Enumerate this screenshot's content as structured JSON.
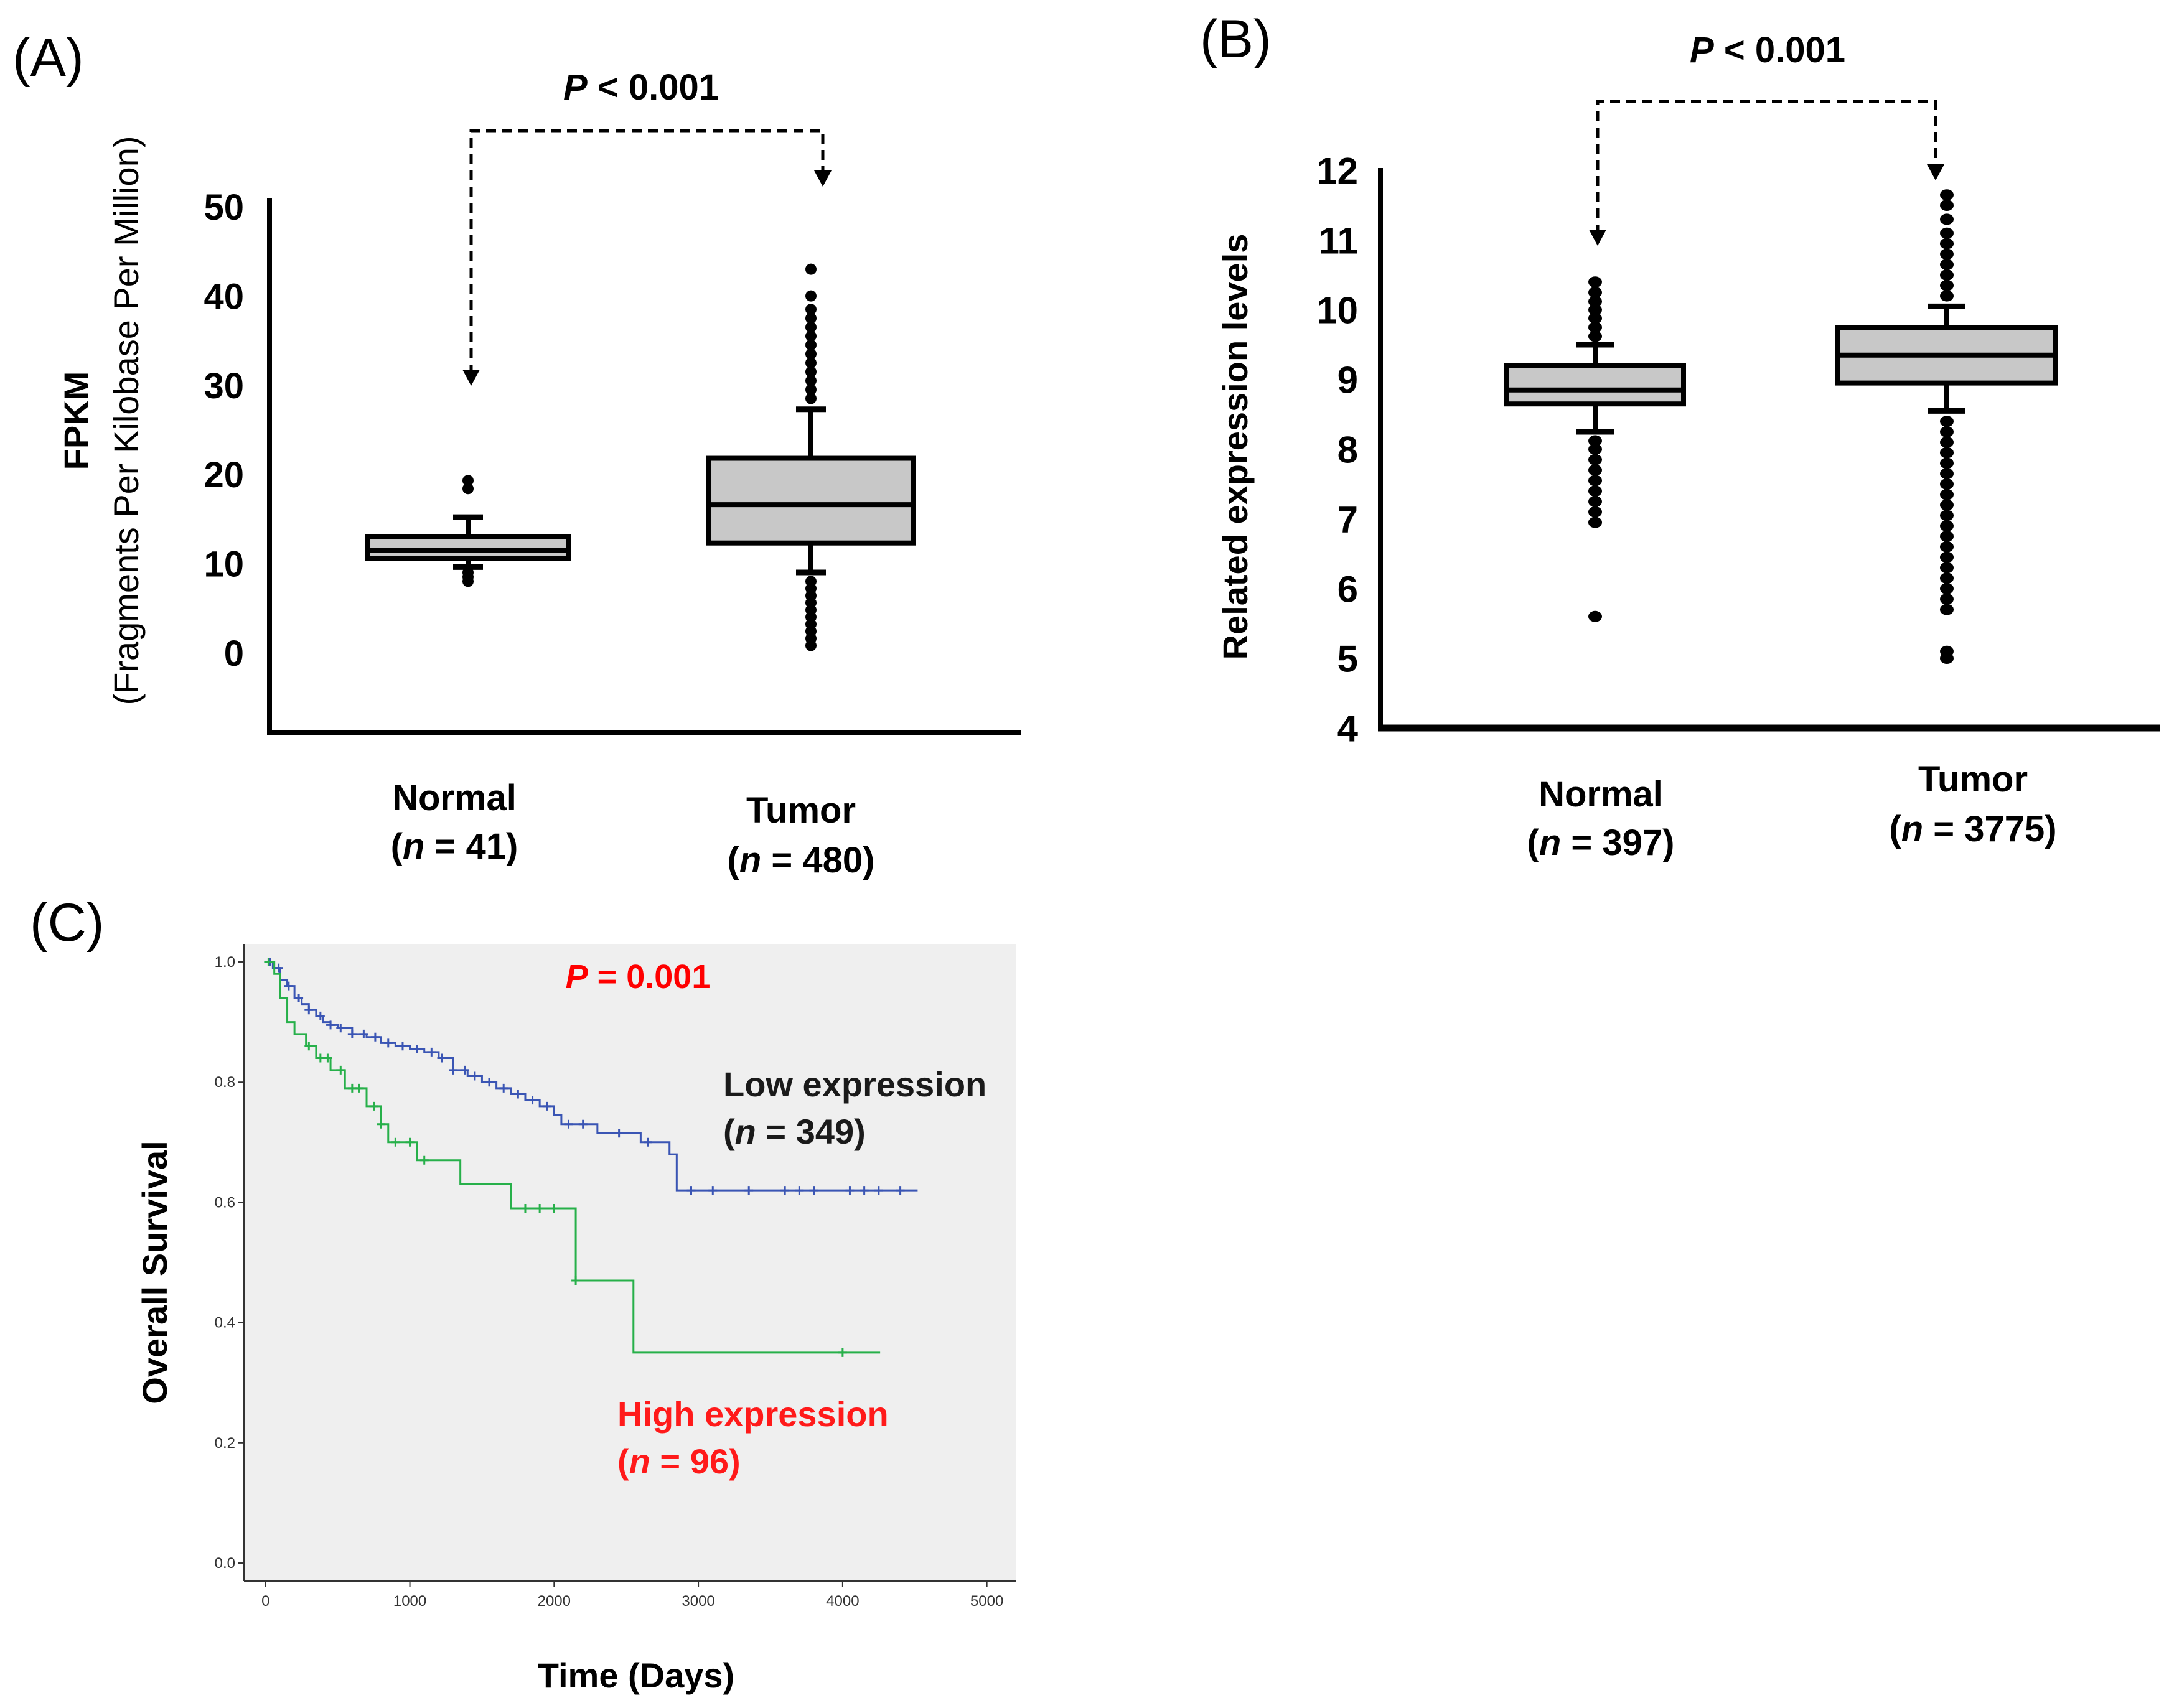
{
  "chart_data": [
    {
      "id": "A",
      "panel_label": "(A)",
      "type": "box",
      "ylabel_main": "FPKM",
      "ylabel_sub": "(Fragments Per Kilobase Per Million)",
      "ylim": [
        -9,
        51
      ],
      "yticks": [
        0,
        10,
        20,
        30,
        40,
        50
      ],
      "pvalue": {
        "italic": "P",
        "rest": " < 0.001"
      },
      "groups": [
        {
          "name": "Normal",
          "n_prefix": "(",
          "n_italic": "n",
          "n_text": " = 41)",
          "whisker_low": 9.6,
          "q1": 10.6,
          "median": 11.5,
          "q3": 13,
          "whisker_high": 15.2,
          "outliers": [
            8,
            8.5,
            9,
            18.4,
            19.3
          ]
        },
        {
          "name": "Tumor",
          "n_prefix": "(",
          "n_italic": "n",
          "n_text": " = 480)",
          "whisker_low": 9,
          "q1": 12.3,
          "median": 16.6,
          "q3": 21.8,
          "whisker_high": 27.3,
          "outliers": [
            0.8,
            1.6,
            2.4,
            3.2,
            4,
            4.8,
            5.6,
            6.4,
            7.2,
            8,
            28.5,
            29.5,
            30.5,
            31.5,
            32.5,
            33.5,
            34.5,
            35.5,
            36.5,
            37.5,
            38.5,
            40,
            43
          ]
        }
      ]
    },
    {
      "id": "B",
      "panel_label": "(B)",
      "type": "box",
      "ylabel_main": "Related expression levels",
      "ylim": [
        4,
        12
      ],
      "yticks": [
        4,
        5,
        6,
        7,
        8,
        9,
        10,
        11,
        12
      ],
      "pvalue": {
        "italic": "P",
        "rest": " < 0.001"
      },
      "groups": [
        {
          "name": "Normal",
          "n_prefix": "(",
          "n_italic": "n",
          "n_text": " = 397)",
          "whisker_low": 8.25,
          "q1": 8.65,
          "median": 8.85,
          "q3": 9.2,
          "whisker_high": 9.5,
          "outliers": [
            5.6,
            6.95,
            7.1,
            7.25,
            7.4,
            7.55,
            7.7,
            7.85,
            8.0,
            8.12,
            9.62,
            9.75,
            9.88,
            10.0,
            10.12,
            10.25,
            10.4
          ]
        },
        {
          "name": "Tumor",
          "n_prefix": "(",
          "n_italic": "n",
          "n_text": " = 3775)",
          "whisker_low": 8.55,
          "q1": 8.95,
          "median": 9.35,
          "q3": 9.75,
          "whisker_high": 10.05,
          "outliers": [
            5.0,
            5.1,
            5.7,
            5.85,
            6.0,
            6.15,
            6.3,
            6.45,
            6.6,
            6.75,
            6.9,
            7.05,
            7.2,
            7.35,
            7.5,
            7.65,
            7.8,
            7.95,
            8.1,
            8.25,
            8.4,
            10.2,
            10.35,
            10.5,
            10.65,
            10.8,
            10.95,
            11.1,
            11.3,
            11.5,
            11.65
          ]
        }
      ]
    },
    {
      "id": "C",
      "panel_label": "(C)",
      "type": "line",
      "subtype": "kaplan-meier",
      "xlabel": "Time (Days)",
      "ylabel": "Overall Survival",
      "xlim": [
        -150,
        5200
      ],
      "ylim": [
        -0.03,
        1.03
      ],
      "xticks": [
        0,
        1000,
        2000,
        3000,
        4000,
        5000
      ],
      "yticks": [
        0.0,
        0.2,
        0.4,
        0.6,
        0.8,
        1.0
      ],
      "ytick_labels": [
        "0.0",
        "0.2",
        "0.4",
        "0.6",
        "0.8",
        "1.0"
      ],
      "pvalue": {
        "italic": "P",
        "rest": " = 0.001"
      },
      "series": [
        {
          "name": "Low expression",
          "n_italic": "n",
          "n_text": " = 349)",
          "color": "#3a55b4",
          "x": [
            0,
            50,
            100,
            150,
            200,
            250,
            300,
            350,
            400,
            450,
            500,
            600,
            700,
            800,
            900,
            1000,
            1100,
            1200,
            1300,
            1400,
            1500,
            1600,
            1700,
            1800,
            1900,
            2000,
            2050,
            2300,
            2600,
            2800,
            2850,
            4520
          ],
          "y": [
            1.0,
            0.99,
            0.97,
            0.96,
            0.94,
            0.93,
            0.92,
            0.91,
            0.9,
            0.895,
            0.89,
            0.88,
            0.875,
            0.865,
            0.86,
            0.855,
            0.85,
            0.84,
            0.82,
            0.81,
            0.8,
            0.79,
            0.78,
            0.77,
            0.76,
            0.745,
            0.73,
            0.715,
            0.7,
            0.68,
            0.62,
            0.62
          ],
          "censor_x": [
            30,
            90,
            160,
            230,
            300,
            380,
            450,
            520,
            600,
            680,
            760,
            850,
            950,
            1050,
            1150,
            1220,
            1300,
            1380,
            1450,
            1550,
            1650,
            1750,
            1850,
            1950,
            2100,
            2200,
            2450,
            2650,
            2950,
            3100,
            3350,
            3600,
            3700,
            3800,
            4050,
            4150,
            4250,
            4400
          ]
        },
        {
          "name": "High expression",
          "n_italic": "n",
          "n_text": " = 96)",
          "color": "#27b04a",
          "x": [
            0,
            60,
            100,
            150,
            200,
            280,
            350,
            450,
            550,
            700,
            800,
            850,
            1050,
            1350,
            1700,
            2150,
            2550,
            4260
          ],
          "y": [
            1.0,
            0.98,
            0.94,
            0.9,
            0.88,
            0.86,
            0.84,
            0.82,
            0.79,
            0.76,
            0.73,
            0.7,
            0.67,
            0.63,
            0.59,
            0.47,
            0.35,
            0.35
          ],
          "censor_x": [
            20,
            300,
            380,
            430,
            520,
            600,
            650,
            750,
            800,
            900,
            1000,
            1100,
            1800,
            1900,
            2000,
            2150,
            4000
          ]
        }
      ]
    }
  ]
}
